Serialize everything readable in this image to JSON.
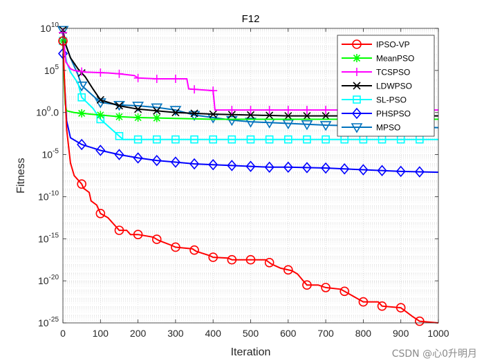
{
  "chart_data": {
    "type": "line",
    "title": "F12",
    "xlabel": "Iteration",
    "ylabel": "Fitness",
    "yscale": "log",
    "xlim": [
      0,
      1000
    ],
    "ylim_exponent": [
      -25,
      10
    ],
    "x_ticks": [
      "0",
      "100",
      "200",
      "300",
      "400",
      "500",
      "600",
      "700",
      "800",
      "900",
      "1000"
    ],
    "y_ticks": [
      {
        "base": "10",
        "exp": "-25"
      },
      {
        "base": "10",
        "exp": "-20"
      },
      {
        "base": "10",
        "exp": "-15"
      },
      {
        "base": "10",
        "exp": "-10"
      },
      {
        "base": "10",
        "exp": "-5"
      },
      {
        "base": "10",
        "exp": "0",
        "suffix": ".0"
      },
      {
        "base": "10",
        "exp": "5"
      },
      {
        "base": "10",
        "exp": "10"
      }
    ],
    "grid": true,
    "legend_position": "top-right",
    "series": [
      {
        "name": "IPSO-VP",
        "color": "#ff0000",
        "marker": "circle",
        "points": [
          [
            0,
            8.5
          ],
          [
            5,
            3
          ],
          [
            10,
            -2
          ],
          [
            20,
            -6
          ],
          [
            30,
            -7.5
          ],
          [
            50,
            -8.5
          ],
          [
            55,
            -9
          ],
          [
            70,
            -9.5
          ],
          [
            75,
            -10.5
          ],
          [
            90,
            -11
          ],
          [
            100,
            -12
          ],
          [
            120,
            -12.5
          ],
          [
            140,
            -13.5
          ],
          [
            150,
            -14
          ],
          [
            170,
            -14
          ],
          [
            180,
            -14.5
          ],
          [
            200,
            -14.5
          ],
          [
            240,
            -14.8
          ],
          [
            255,
            -15.2
          ],
          [
            290,
            -15.8
          ],
          [
            300,
            -16
          ],
          [
            345,
            -16.2
          ],
          [
            355,
            -16.5
          ],
          [
            390,
            -17
          ],
          [
            400,
            -17.2
          ],
          [
            440,
            -17.3
          ],
          [
            450,
            -17.5
          ],
          [
            540,
            -17.5
          ],
          [
            555,
            -18
          ],
          [
            580,
            -18.5
          ],
          [
            610,
            -18.8
          ],
          [
            625,
            -19.2
          ],
          [
            640,
            -20
          ],
          [
            650,
            -20.5
          ],
          [
            680,
            -20.5
          ],
          [
            700,
            -20.8
          ],
          [
            740,
            -21
          ],
          [
            760,
            -21.5
          ],
          [
            780,
            -22
          ],
          [
            800,
            -22.5
          ],
          [
            840,
            -22.5
          ],
          [
            850,
            -23
          ],
          [
            900,
            -23.2
          ],
          [
            930,
            -24.2
          ],
          [
            950,
            -24.8
          ],
          [
            1000,
            -25
          ]
        ],
        "marker_x": [
          0,
          50,
          100,
          150,
          200,
          250,
          300,
          350,
          400,
          450,
          500,
          550,
          600,
          650,
          700,
          750,
          800,
          850,
          900,
          950
        ]
      },
      {
        "name": "MeanPSO",
        "color": "#00ff00",
        "marker": "star",
        "points": [
          [
            0,
            8.5
          ],
          [
            3,
            4
          ],
          [
            6,
            1
          ],
          [
            10,
            0.2
          ],
          [
            30,
            0
          ],
          [
            50,
            -0.1
          ],
          [
            100,
            -0.3
          ],
          [
            150,
            -0.5
          ],
          [
            200,
            -0.6
          ],
          [
            300,
            -0.7
          ],
          [
            400,
            -0.8
          ],
          [
            1000,
            -0.8
          ]
        ],
        "marker_x": [
          0,
          50,
          100,
          150,
          200,
          250
        ]
      },
      {
        "name": "TCSPSO",
        "color": "#ff00ff",
        "marker": "plus",
        "points": [
          [
            0,
            9.5
          ],
          [
            8,
            6
          ],
          [
            20,
            5.2
          ],
          [
            30,
            5
          ],
          [
            60,
            4.8
          ],
          [
            120,
            4.7
          ],
          [
            150,
            4.6
          ],
          [
            190,
            4.4
          ],
          [
            200,
            4.1
          ],
          [
            250,
            4.0
          ],
          [
            330,
            4.0
          ],
          [
            335,
            2.8
          ],
          [
            400,
            2.6
          ],
          [
            405,
            0.3
          ],
          [
            1000,
            0.3
          ]
        ],
        "marker_x": [
          0,
          50,
          100,
          150,
          200,
          250,
          300,
          350,
          400,
          450,
          500,
          550,
          600,
          650,
          700,
          750,
          800,
          850,
          900,
          950
        ]
      },
      {
        "name": "LDWPSO",
        "color": "#000000",
        "marker": "x",
        "points": [
          [
            0,
            9.8
          ],
          [
            8,
            8
          ],
          [
            20,
            6.5
          ],
          [
            40,
            5.2
          ],
          [
            60,
            4.2
          ],
          [
            80,
            2.8
          ],
          [
            100,
            1.5
          ],
          [
            150,
            0.8
          ],
          [
            200,
            0.4
          ],
          [
            250,
            0.2
          ],
          [
            300,
            0
          ],
          [
            350,
            -0.1
          ],
          [
            400,
            -0.2
          ],
          [
            500,
            -0.3
          ],
          [
            600,
            -0.4
          ],
          [
            1000,
            -0.4
          ]
        ],
        "marker_x": [
          0,
          50,
          100,
          150,
          200,
          250,
          300,
          350,
          400,
          450,
          500,
          550,
          600,
          650,
          700,
          750,
          800,
          850,
          900,
          950
        ]
      },
      {
        "name": "SL-PSO",
        "color": "#00ffff",
        "marker": "square",
        "points": [
          [
            0,
            8.5
          ],
          [
            10,
            6
          ],
          [
            20,
            4.8
          ],
          [
            40,
            3.5
          ],
          [
            50,
            1.8
          ],
          [
            80,
            0.5
          ],
          [
            100,
            -0.8
          ],
          [
            130,
            -2
          ],
          [
            150,
            -2.8
          ],
          [
            160,
            -3.2
          ],
          [
            1000,
            -3.2
          ]
        ],
        "marker_x": [
          0,
          50,
          100,
          150,
          200,
          250,
          300,
          350,
          400,
          450,
          500,
          550,
          600,
          650,
          700,
          750,
          800,
          850,
          900,
          950
        ]
      },
      {
        "name": "PHSPSO",
        "color": "#0000ff",
        "marker": "diamond",
        "points": [
          [
            0,
            7
          ],
          [
            10,
            -1
          ],
          [
            20,
            -3
          ],
          [
            50,
            -3.8
          ],
          [
            100,
            -4.5
          ],
          [
            150,
            -5
          ],
          [
            200,
            -5.4
          ],
          [
            250,
            -5.7
          ],
          [
            300,
            -5.9
          ],
          [
            350,
            -6.1
          ],
          [
            400,
            -6.2
          ],
          [
            450,
            -6.3
          ],
          [
            500,
            -6.4
          ],
          [
            550,
            -6.5
          ],
          [
            600,
            -6.5
          ],
          [
            700,
            -6.6
          ],
          [
            800,
            -6.8
          ],
          [
            900,
            -7
          ],
          [
            1000,
            -7.1
          ]
        ],
        "marker_x": [
          0,
          50,
          100,
          150,
          200,
          250,
          300,
          350,
          400,
          450,
          500,
          550,
          600,
          650,
          700,
          750,
          800,
          850,
          900,
          950
        ]
      },
      {
        "name": "MPSO",
        "color": "#0072bd",
        "marker": "triangle-down",
        "points": [
          [
            0,
            9.8
          ],
          [
            8,
            8
          ],
          [
            20,
            6.5
          ],
          [
            40,
            4.5
          ],
          [
            50,
            3.2
          ],
          [
            80,
            2
          ],
          [
            100,
            1.2
          ],
          [
            150,
            0.9
          ],
          [
            200,
            0.8
          ],
          [
            250,
            0.6
          ],
          [
            300,
            0.3
          ],
          [
            350,
            -0.3
          ],
          [
            400,
            -0.6
          ],
          [
            450,
            -0.9
          ],
          [
            500,
            -1.1
          ],
          [
            600,
            -1.3
          ],
          [
            700,
            -1.5
          ],
          [
            800,
            -1.6
          ],
          [
            900,
            -1.7
          ],
          [
            1000,
            -1.8
          ]
        ],
        "marker_x": [
          0,
          50,
          100,
          150,
          200,
          250,
          300,
          350,
          400,
          450,
          500,
          550,
          600,
          650,
          700,
          750,
          800,
          850,
          900,
          950
        ]
      }
    ]
  },
  "watermark": "CSDN @心0升明月"
}
